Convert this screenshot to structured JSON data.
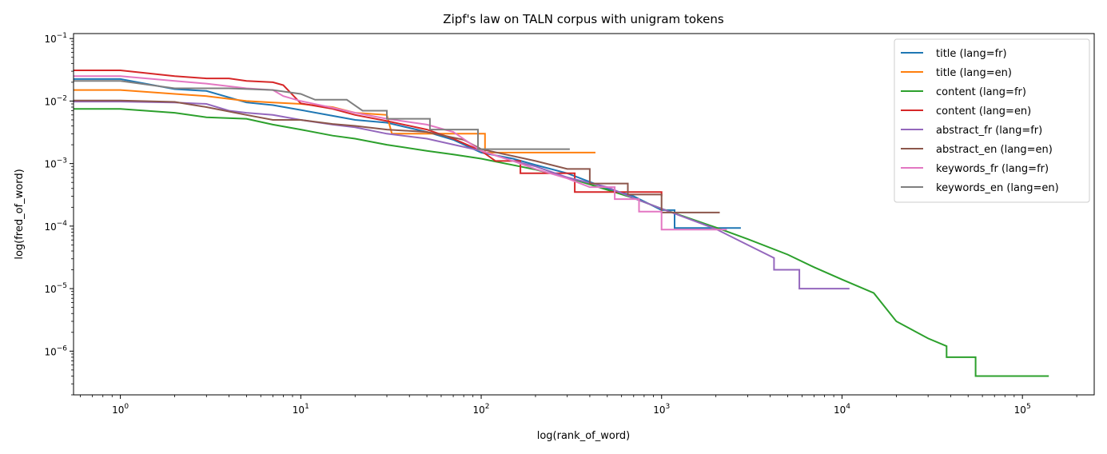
{
  "chart_data": {
    "type": "line",
    "title": "Zipf's law on TALN corpus with unigram tokens",
    "xlabel": "log(rank_of_word)",
    "ylabel": "log(fred_of_word)",
    "xscale": "log",
    "yscale": "log",
    "xlim": [
      0.55,
      250000
    ],
    "ylim": [
      2e-07,
      0.12
    ],
    "grid": false,
    "legend_position": "top-right",
    "x_ticks": [
      {
        "value": 1,
        "base": "10",
        "exp": "0"
      },
      {
        "value": 10,
        "base": "10",
        "exp": "1"
      },
      {
        "value": 100,
        "base": "10",
        "exp": "2"
      },
      {
        "value": 1000,
        "base": "10",
        "exp": "3"
      },
      {
        "value": 10000,
        "base": "10",
        "exp": "4"
      },
      {
        "value": 100000,
        "base": "10",
        "exp": "5"
      }
    ],
    "y_ticks": [
      {
        "value": 1e-06,
        "base": "10",
        "exp": "−6"
      },
      {
        "value": 1e-05,
        "base": "10",
        "exp": "−5"
      },
      {
        "value": 0.0001,
        "base": "10",
        "exp": "−4"
      },
      {
        "value": 0.001,
        "base": "10",
        "exp": "−3"
      },
      {
        "value": 0.01,
        "base": "10",
        "exp": "−2"
      },
      {
        "value": 0.1,
        "base": "10",
        "exp": "−1"
      }
    ],
    "series": [
      {
        "name": "title (lang=fr)",
        "color": "#1f77b4",
        "points": [
          [
            0.55,
            0.0225
          ],
          [
            1,
            0.0225
          ],
          [
            2,
            0.0155
          ],
          [
            3,
            0.0145
          ],
          [
            5,
            0.0095
          ],
          [
            7,
            0.0086
          ],
          [
            10,
            0.0072
          ],
          [
            15,
            0.0058
          ],
          [
            20,
            0.005
          ],
          [
            30,
            0.0045
          ],
          [
            50,
            0.0032
          ],
          [
            70,
            0.0024
          ],
          [
            100,
            0.0015
          ],
          [
            150,
            0.0012
          ],
          [
            200,
            0.00095
          ],
          [
            300,
            0.0007
          ],
          [
            500,
            0.0004
          ],
          [
            700,
            0.0003
          ],
          [
            1000,
            0.00018
          ],
          [
            1180,
            0.00018
          ],
          [
            1180,
            9.3e-05
          ],
          [
            2750,
            9.3e-05
          ]
        ]
      },
      {
        "name": "title (lang=en)",
        "color": "#ff7f0e",
        "points": [
          [
            0.55,
            0.015
          ],
          [
            1,
            0.015
          ],
          [
            2,
            0.013
          ],
          [
            3,
            0.012
          ],
          [
            5,
            0.01
          ],
          [
            7,
            0.0095
          ],
          [
            10,
            0.009
          ],
          [
            15,
            0.008
          ],
          [
            20,
            0.0065
          ],
          [
            30,
            0.006
          ],
          [
            32,
            0.003
          ],
          [
            50,
            0.003
          ],
          [
            105,
            0.003
          ],
          [
            105,
            0.0015
          ],
          [
            430,
            0.0015
          ]
        ]
      },
      {
        "name": "content (lang=fr)",
        "color": "#2ca02c",
        "points": [
          [
            0.55,
            0.0075
          ],
          [
            1,
            0.0075
          ],
          [
            2,
            0.0065
          ],
          [
            3,
            0.0055
          ],
          [
            5,
            0.0052
          ],
          [
            7,
            0.0042
          ],
          [
            10,
            0.0035
          ],
          [
            15,
            0.0028
          ],
          [
            20,
            0.0025
          ],
          [
            30,
            0.002
          ],
          [
            50,
            0.0016
          ],
          [
            70,
            0.0014
          ],
          [
            100,
            0.0012
          ],
          [
            200,
            0.0008
          ],
          [
            300,
            0.0006
          ],
          [
            500,
            0.00038
          ],
          [
            700,
            0.00028
          ],
          [
            1000,
            0.00019
          ],
          [
            2000,
            9.5e-05
          ],
          [
            3000,
            6.2e-05
          ],
          [
            5000,
            3.5e-05
          ],
          [
            7000,
            2.2e-05
          ],
          [
            10000,
            1.4e-05
          ],
          [
            15000,
            8.5e-06
          ],
          [
            20000,
            3e-06
          ],
          [
            30000,
            1.6e-06
          ],
          [
            38000,
            1.2e-06
          ],
          [
            38000,
            8e-07
          ],
          [
            55000,
            8e-07
          ],
          [
            55000,
            4e-07
          ],
          [
            140000,
            4e-07
          ]
        ]
      },
      {
        "name": "content (lang=en)",
        "color": "#d62728",
        "points": [
          [
            0.55,
            0.031
          ],
          [
            1,
            0.031
          ],
          [
            2,
            0.025
          ],
          [
            3,
            0.023
          ],
          [
            4,
            0.023
          ],
          [
            5,
            0.021
          ],
          [
            7,
            0.02
          ],
          [
            8,
            0.018
          ],
          [
            10,
            0.0092
          ],
          [
            15,
            0.0075
          ],
          [
            20,
            0.006
          ],
          [
            30,
            0.0048
          ],
          [
            50,
            0.0035
          ],
          [
            70,
            0.0025
          ],
          [
            100,
            0.0016
          ],
          [
            120,
            0.0011
          ],
          [
            165,
            0.0011
          ],
          [
            165,
            0.0007
          ],
          [
            330,
            0.0007
          ],
          [
            330,
            0.00035
          ],
          [
            1000,
            0.00035
          ],
          [
            1000,
            0.0003
          ]
        ]
      },
      {
        "name": "abstract_fr (lang=fr)",
        "color": "#9467bd",
        "points": [
          [
            0.55,
            0.0098
          ],
          [
            1,
            0.0098
          ],
          [
            2,
            0.0095
          ],
          [
            3,
            0.009
          ],
          [
            4,
            0.007
          ],
          [
            5,
            0.0065
          ],
          [
            7,
            0.006
          ],
          [
            10,
            0.005
          ],
          [
            15,
            0.0042
          ],
          [
            20,
            0.0038
          ],
          [
            30,
            0.003
          ],
          [
            50,
            0.0025
          ],
          [
            100,
            0.0016
          ],
          [
            150,
            0.0011
          ],
          [
            200,
            0.0009
          ],
          [
            300,
            0.0006
          ],
          [
            500,
            0.00042
          ],
          [
            700,
            0.00028
          ],
          [
            1000,
            0.00019
          ],
          [
            2000,
            9e-05
          ],
          [
            3000,
            5e-05
          ],
          [
            4200,
            3.1e-05
          ],
          [
            4200,
            2e-05
          ],
          [
            5800,
            2e-05
          ],
          [
            5800,
            1e-05
          ],
          [
            11000,
            1e-05
          ]
        ]
      },
      {
        "name": "abstract_en (lang=en)",
        "color": "#8c564b",
        "points": [
          [
            0.55,
            0.0102
          ],
          [
            1,
            0.0102
          ],
          [
            2,
            0.0097
          ],
          [
            3,
            0.008
          ],
          [
            5,
            0.006
          ],
          [
            7,
            0.005
          ],
          [
            10,
            0.005
          ],
          [
            15,
            0.0043
          ],
          [
            20,
            0.004
          ],
          [
            30,
            0.0035
          ],
          [
            50,
            0.0032
          ],
          [
            80,
            0.0024
          ],
          [
            100,
            0.0017
          ],
          [
            200,
            0.0011
          ],
          [
            300,
            0.00082
          ],
          [
            400,
            0.00082
          ],
          [
            400,
            0.00048
          ],
          [
            650,
            0.00048
          ],
          [
            650,
            0.00032
          ],
          [
            1000,
            0.00032
          ],
          [
            1000,
            0.000165
          ],
          [
            2100,
            0.000165
          ]
        ]
      },
      {
        "name": "keywords_fr (lang=fr)",
        "color": "#e377c2",
        "points": [
          [
            0.55,
            0.025
          ],
          [
            1,
            0.025
          ],
          [
            2,
            0.021
          ],
          [
            3,
            0.019
          ],
          [
            5,
            0.016
          ],
          [
            7,
            0.015
          ],
          [
            8,
            0.012
          ],
          [
            10,
            0.01
          ],
          [
            15,
            0.0078
          ],
          [
            20,
            0.0065
          ],
          [
            30,
            0.0052
          ],
          [
            50,
            0.0042
          ],
          [
            70,
            0.0032
          ],
          [
            100,
            0.0016
          ],
          [
            150,
            0.0011
          ],
          [
            200,
            0.00082
          ],
          [
            300,
            0.00058
          ],
          [
            400,
            0.00042
          ],
          [
            550,
            0.00042
          ],
          [
            550,
            0.00027
          ],
          [
            750,
            0.00027
          ],
          [
            750,
            0.00017
          ],
          [
            1000,
            0.00017
          ],
          [
            1000,
            8.8e-05
          ],
          [
            2300,
            8.8e-05
          ]
        ]
      },
      {
        "name": "keywords_en (lang=en)",
        "color": "#7f7f7f",
        "points": [
          [
            0.55,
            0.021
          ],
          [
            1,
            0.021
          ],
          [
            2,
            0.016
          ],
          [
            4,
            0.016
          ],
          [
            7,
            0.015
          ],
          [
            10,
            0.013
          ],
          [
            12,
            0.0105
          ],
          [
            18,
            0.0105
          ],
          [
            22,
            0.007
          ],
          [
            30,
            0.007
          ],
          [
            30,
            0.0052
          ],
          [
            52,
            0.0052
          ],
          [
            52,
            0.0035
          ],
          [
            96,
            0.0035
          ],
          [
            96,
            0.0017
          ],
          [
            310,
            0.0017
          ]
        ]
      }
    ]
  }
}
